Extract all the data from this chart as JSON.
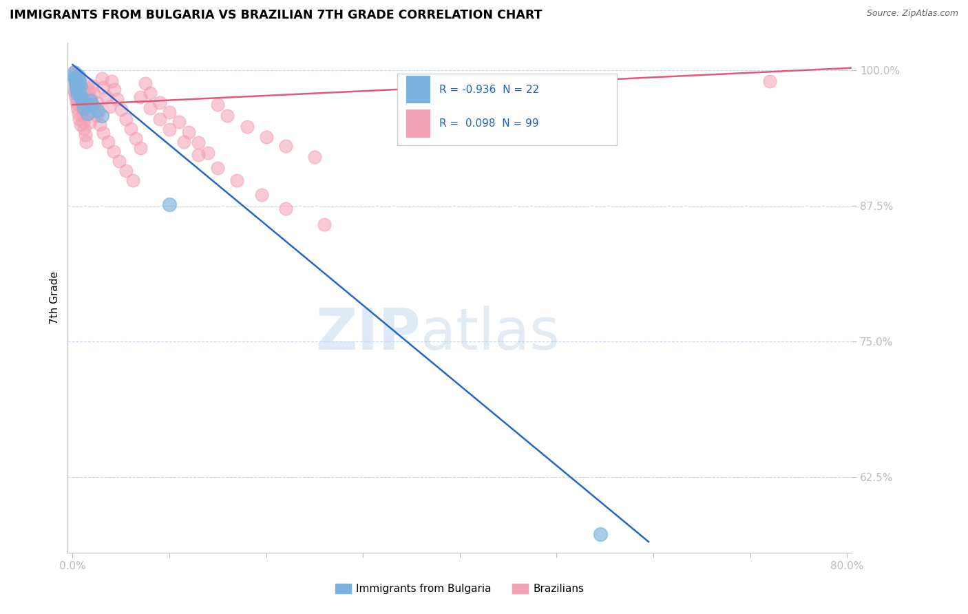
{
  "title": "IMMIGRANTS FROM BULGARIA VS BRAZILIAN 7TH GRADE CORRELATION CHART",
  "source": "Source: ZipAtlas.com",
  "xlabel_legend_1": "Immigrants from Bulgaria",
  "xlabel_legend_2": "Brazilians",
  "ylabel": "7th Grade",
  "xlim": [
    -0.005,
    0.805
  ],
  "ylim": [
    0.555,
    1.025
  ],
  "xticks": [
    0.0,
    0.1,
    0.2,
    0.3,
    0.4,
    0.5,
    0.6,
    0.7,
    0.8
  ],
  "xticklabels": [
    "0.0%",
    "",
    "",
    "",
    "",
    "",
    "",
    "",
    "80.0%"
  ],
  "yticks": [
    0.625,
    0.75,
    0.875,
    1.0
  ],
  "yticklabels": [
    "62.5%",
    "75.0%",
    "87.5%",
    "100.0%"
  ],
  "blue_color": "#7ab3e0",
  "pink_color": "#f4a0b5",
  "blue_line_color": "#2166c8",
  "pink_line_color": "#e05878",
  "legend_R1": "-0.936",
  "legend_N1": "22",
  "legend_R2": "0.098",
  "legend_N2": "99",
  "blue_R": -0.936,
  "blue_N": 22,
  "pink_R": 0.098,
  "pink_N": 99,
  "grid_color": "#c8d4e8",
  "blue_line_x": [
    0.0,
    0.595
  ],
  "blue_line_y": [
    1.005,
    0.565
  ],
  "pink_line_x": [
    0.0,
    0.805
  ],
  "pink_line_y": [
    0.968,
    1.002
  ],
  "blue_pts_x": [
    0.002,
    0.003,
    0.004,
    0.005,
    0.006,
    0.007,
    0.008,
    0.009,
    0.01,
    0.012,
    0.015,
    0.018,
    0.02,
    0.025,
    0.03,
    0.002,
    0.003,
    0.005,
    0.007,
    0.009,
    0.1,
    0.545
  ],
  "blue_pts_y": [
    0.993,
    0.988,
    0.983,
    0.978,
    0.995,
    0.99,
    0.985,
    0.975,
    0.97,
    0.965,
    0.96,
    0.972,
    0.968,
    0.963,
    0.958,
    0.998,
    0.992,
    0.986,
    0.98,
    0.974,
    0.876,
    0.572
  ],
  "pink_pts_x": [
    0.001,
    0.002,
    0.002,
    0.003,
    0.003,
    0.004,
    0.004,
    0.005,
    0.005,
    0.006,
    0.006,
    0.007,
    0.007,
    0.008,
    0.008,
    0.009,
    0.01,
    0.01,
    0.011,
    0.012,
    0.013,
    0.014,
    0.015,
    0.016,
    0.017,
    0.018,
    0.02,
    0.022,
    0.025,
    0.027,
    0.03,
    0.032,
    0.035,
    0.038,
    0.04,
    0.043,
    0.046,
    0.05,
    0.055,
    0.06,
    0.065,
    0.07,
    0.075,
    0.08,
    0.09,
    0.1,
    0.11,
    0.12,
    0.13,
    0.14,
    0.15,
    0.16,
    0.18,
    0.2,
    0.22,
    0.25,
    0.001,
    0.001,
    0.002,
    0.003,
    0.003,
    0.004,
    0.005,
    0.005,
    0.006,
    0.007,
    0.008,
    0.009,
    0.01,
    0.011,
    0.012,
    0.013,
    0.015,
    0.017,
    0.019,
    0.022,
    0.025,
    0.028,
    0.032,
    0.037,
    0.042,
    0.048,
    0.055,
    0.062,
    0.07,
    0.08,
    0.09,
    0.1,
    0.115,
    0.13,
    0.15,
    0.17,
    0.195,
    0.22,
    0.26,
    0.72
  ],
  "pink_pts_y": [
    0.99,
    0.995,
    0.98,
    0.992,
    0.975,
    0.988,
    0.97,
    0.984,
    0.965,
    0.98,
    0.96,
    0.976,
    0.955,
    0.972,
    0.95,
    0.968,
    0.964,
    0.958,
    0.952,
    0.946,
    0.94,
    0.934,
    0.975,
    0.968,
    0.96,
    0.952,
    0.985,
    0.978,
    0.97,
    0.962,
    0.992,
    0.984,
    0.975,
    0.966,
    0.99,
    0.982,
    0.973,
    0.964,
    0.955,
    0.946,
    0.937,
    0.928,
    0.988,
    0.979,
    0.97,
    0.961,
    0.952,
    0.943,
    0.933,
    0.924,
    0.968,
    0.958,
    0.948,
    0.938,
    0.93,
    0.92,
    0.998,
    0.982,
    0.993,
    0.997,
    0.975,
    0.988,
    0.995,
    0.969,
    0.985,
    0.991,
    0.978,
    0.972,
    0.982,
    0.965,
    0.975,
    0.958,
    0.987,
    0.98,
    0.973,
    0.966,
    0.958,
    0.95,
    0.942,
    0.934,
    0.925,
    0.916,
    0.907,
    0.898,
    0.975,
    0.965,
    0.955,
    0.945,
    0.934,
    0.922,
    0.91,
    0.898,
    0.885,
    0.872,
    0.858,
    0.99
  ]
}
